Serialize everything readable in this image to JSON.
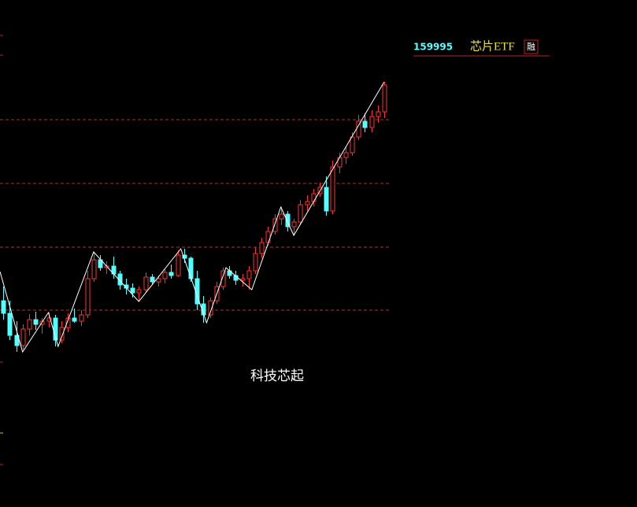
{
  "chart_data": {
    "type": "candlestick",
    "code": "159995",
    "name": "芯片ETF",
    "badge": "融",
    "caption": "科技芯起",
    "x": [
      0,
      1,
      2,
      3,
      4,
      5,
      6,
      7,
      8,
      9,
      10,
      11,
      12,
      13,
      14,
      15,
      16,
      17,
      18,
      19,
      20,
      21,
      22,
      23,
      24,
      25,
      26,
      27,
      28,
      29,
      30,
      31,
      32,
      33,
      34,
      35,
      36,
      37,
      38,
      39,
      40,
      41,
      42,
      43,
      44,
      45,
      46,
      47,
      48,
      49,
      50,
      51,
      52,
      53,
      54,
      55,
      56,
      57,
      58,
      59
    ],
    "open": [
      262,
      246,
      218,
      205,
      226,
      238,
      232,
      236,
      240,
      212,
      228,
      240,
      236,
      244,
      290,
      314,
      304,
      306,
      296,
      282,
      278,
      272,
      276,
      292,
      286,
      290,
      298,
      294,
      320,
      316,
      290,
      258,
      244,
      262,
      280,
      300,
      294,
      288,
      290,
      300,
      322,
      336,
      350,
      366,
      372,
      356,
      362,
      384,
      388,
      398,
      406,
      376,
      432,
      444,
      450,
      470,
      490,
      482,
      496,
      502
    ],
    "high": [
      280,
      262,
      236,
      232,
      245,
      248,
      240,
      247,
      244,
      236,
      246,
      252,
      250,
      300,
      324,
      320,
      312,
      318,
      300,
      290,
      284,
      280,
      298,
      296,
      294,
      302,
      308,
      326,
      328,
      318,
      300,
      268,
      266,
      286,
      304,
      306,
      300,
      296,
      306,
      330,
      342,
      356,
      372,
      381,
      376,
      366,
      390,
      396,
      404,
      412,
      420,
      440,
      450,
      458,
      476,
      498,
      500,
      504,
      510,
      540
    ],
    "low": [
      238,
      212,
      197,
      200,
      218,
      225,
      220,
      228,
      204,
      208,
      222,
      234,
      230,
      240,
      286,
      300,
      296,
      290,
      276,
      270,
      266,
      261,
      272,
      282,
      280,
      284,
      290,
      292,
      310,
      286,
      250,
      234,
      240,
      258,
      276,
      290,
      282,
      280,
      276,
      296,
      316,
      332,
      346,
      358,
      350,
      345,
      358,
      376,
      382,
      394,
      370,
      372,
      424,
      436,
      446,
      466,
      476,
      476,
      488,
      494
    ],
    "close": [
      246,
      218,
      205,
      226,
      238,
      232,
      236,
      240,
      212,
      228,
      240,
      236,
      244,
      290,
      314,
      304,
      306,
      296,
      282,
      278,
      272,
      276,
      292,
      286,
      290,
      298,
      294,
      320,
      316,
      290,
      258,
      244,
      262,
      280,
      300,
      294,
      288,
      290,
      300,
      322,
      336,
      350,
      366,
      372,
      356,
      362,
      384,
      388,
      398,
      406,
      376,
      432,
      444,
      450,
      470,
      490,
      482,
      496,
      502,
      536
    ],
    "up_color": "#ff3232",
    "down_color": "#54ffff",
    "zigzag": {
      "color": "#ffffff",
      "x": [
        -0.5,
        3,
        7,
        8.5,
        14,
        21,
        27.5,
        31.5,
        34.5,
        38.5,
        43,
        45,
        59
      ],
      "values": [
        299,
        197,
        247,
        204,
        324,
        261,
        328,
        234,
        304,
        276,
        381,
        345,
        540
      ]
    },
    "xlim": [
      -0.5,
      59.5
    ],
    "ylim": [
      0,
      644
    ],
    "grid_lines": [
      492,
      411,
      330,
      250
    ],
    "grid_color": "#b0303a"
  }
}
